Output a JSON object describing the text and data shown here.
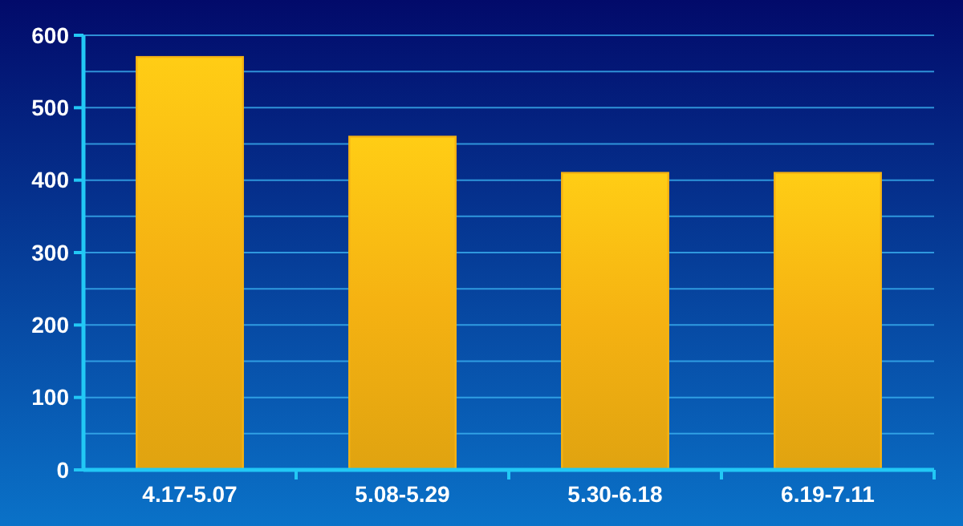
{
  "chart_data": {
    "type": "bar",
    "categories": [
      "4.17-5.07",
      "5.08-5.29",
      "5.30-6.18",
      "6.19-7.11"
    ],
    "values": [
      570,
      460,
      410,
      410
    ],
    "color": "#f5b212",
    "ylim": [
      0,
      600
    ],
    "yticks": [
      0,
      {
        "value": 50,
        "label": null
      },
      100,
      {
        "value": 150,
        "label": null
      },
      200,
      {
        "value": 250,
        "label": null
      },
      300,
      {
        "value": 350,
        "label": null
      },
      400,
      {
        "value": 450,
        "label": null
      },
      500,
      {
        "value": 550,
        "label": null
      },
      600
    ],
    "grid": "y"
  }
}
